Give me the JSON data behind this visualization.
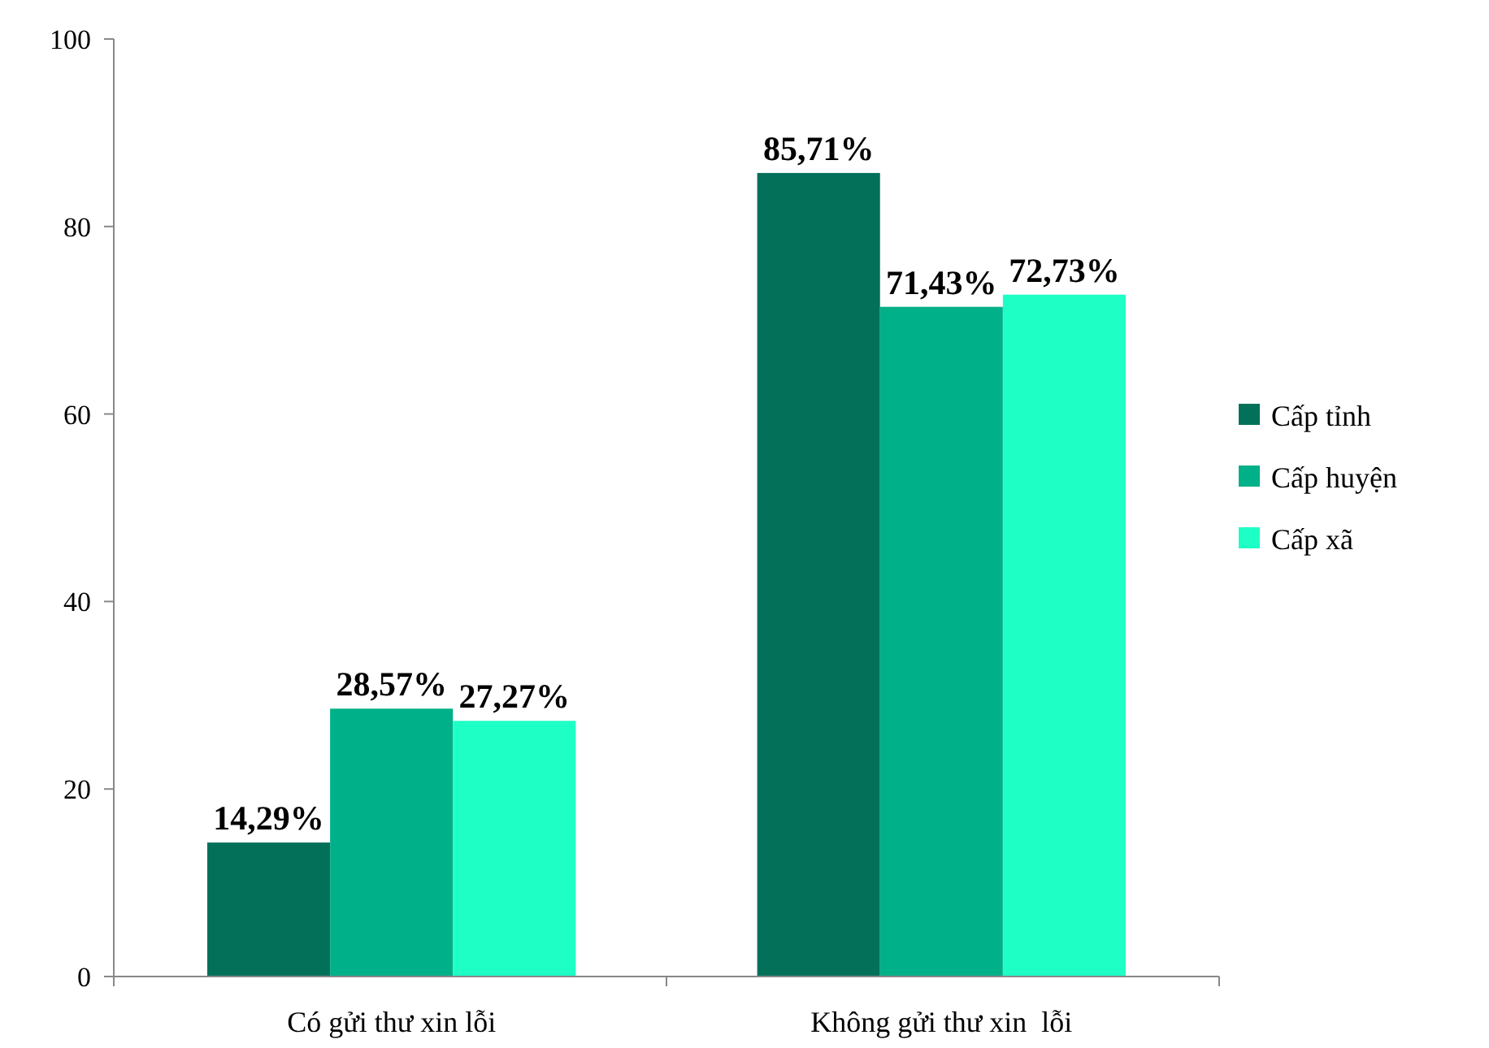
{
  "chart_data": {
    "type": "bar",
    "categories": [
      "Có gửi thư xin lỗi",
      "Không gửi thư xin  lỗi"
    ],
    "series": [
      {
        "name": "Cấp tỉnh",
        "color": "#03705a",
        "values": [
          14.29,
          85.71
        ],
        "value_labels": [
          "14,29%",
          "85,71%"
        ]
      },
      {
        "name": "Cấp huyện",
        "color": "#00b088",
        "values": [
          28.57,
          71.43
        ],
        "value_labels": [
          "28,57%",
          "71,43%"
        ]
      },
      {
        "name": "Cấp xã",
        "color": "#1effc6",
        "values": [
          27.27,
          72.73
        ],
        "value_labels": [
          "27,27%",
          "72,73%"
        ]
      }
    ],
    "ylim": [
      0,
      100
    ],
    "yticks": [
      0,
      20,
      40,
      60,
      80,
      100
    ],
    "grid": false,
    "legend": "right"
  }
}
